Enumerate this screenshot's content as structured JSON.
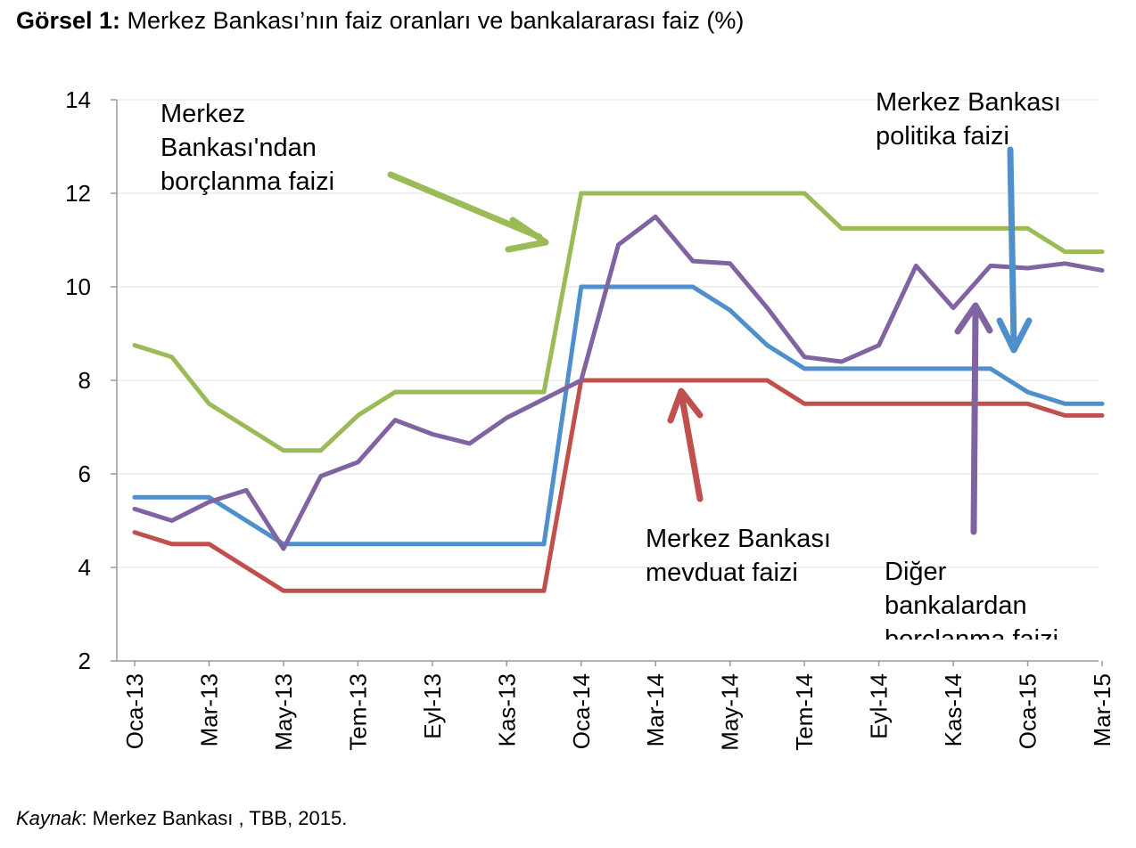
{
  "title": {
    "prefix": "Görsel 1:",
    "text": " Merkez Bankası’nın faiz oranları ve bankalararası faiz (%)"
  },
  "source": {
    "prefix": "Kaynak",
    "text": ": Merkez Bankası , TBB, 2015."
  },
  "chart_data": {
    "type": "line",
    "ylim": [
      2,
      14
    ],
    "yticks": [
      2,
      4,
      6,
      8,
      10,
      12,
      14
    ],
    "x_tick_labels": [
      "Oca-13",
      "Mar-13",
      "May-13",
      "Tem-13",
      "Eyl-13",
      "Kas-13",
      "Oca-14",
      "Mar-14",
      "May-14",
      "Tem-14",
      "Eyl-14",
      "Kas-14",
      "Oca-15",
      "Mar-15"
    ],
    "x": [
      "Oca-13",
      "Şub-13",
      "Mar-13",
      "Nis-13",
      "May-13",
      "Haz-13",
      "Tem-13",
      "Ağu-13",
      "Eyl-13",
      "Eki-13",
      "Kas-13",
      "Ara-13",
      "Oca-14",
      "Şub-14",
      "Mar-14",
      "Nis-14",
      "May-14",
      "Haz-14",
      "Tem-14",
      "Ağu-14",
      "Eyl-14",
      "Eki-14",
      "Kas-14",
      "Ara-14",
      "Oca-15",
      "Şub-15",
      "Mar-15"
    ],
    "series": [
      {
        "key": "borclanma",
        "color": "#9bbb59",
        "values": [
          8.75,
          8.5,
          7.5,
          7.0,
          6.5,
          6.5,
          7.25,
          7.75,
          7.75,
          7.75,
          7.75,
          7.75,
          12.0,
          12.0,
          12.0,
          12.0,
          12.0,
          12.0,
          12.0,
          11.25,
          11.25,
          11.25,
          11.25,
          11.25,
          11.25,
          10.75,
          10.75
        ]
      },
      {
        "key": "politika",
        "color": "#4f8fcc",
        "values": [
          5.5,
          5.5,
          5.5,
          5.0,
          4.5,
          4.5,
          4.5,
          4.5,
          4.5,
          4.5,
          4.5,
          4.5,
          10.0,
          10.0,
          10.0,
          10.0,
          9.5,
          8.75,
          8.25,
          8.25,
          8.25,
          8.25,
          8.25,
          8.25,
          7.75,
          7.5,
          7.5
        ]
      },
      {
        "key": "mevduat",
        "color": "#c0504d",
        "values": [
          4.75,
          4.5,
          4.5,
          4.0,
          3.5,
          3.5,
          3.5,
          3.5,
          3.5,
          3.5,
          3.5,
          3.5,
          8.0,
          8.0,
          8.0,
          8.0,
          8.0,
          8.0,
          7.5,
          7.5,
          7.5,
          7.5,
          7.5,
          7.5,
          7.5,
          7.25,
          7.25
        ]
      },
      {
        "key": "diger",
        "color": "#8064a2",
        "values": [
          5.25,
          5.0,
          5.4,
          5.65,
          4.4,
          5.95,
          6.25,
          7.15,
          6.85,
          6.65,
          7.2,
          7.6,
          8.0,
          10.9,
          11.5,
          10.55,
          10.5,
          9.55,
          8.5,
          8.4,
          8.75,
          10.45,
          9.55,
          10.45,
          10.4,
          10.5,
          10.35
        ]
      }
    ],
    "annotations": [
      {
        "key": "borclanma",
        "lines": [
          "Merkez",
          "Bankası'ndan",
          "borçlanma faizi"
        ]
      },
      {
        "key": "politika",
        "lines": [
          "Merkez Bankası",
          "politika faizi"
        ]
      },
      {
        "key": "mevduat",
        "lines": [
          "Merkez Bankası",
          "mevduat faizi"
        ]
      },
      {
        "key": "diger",
        "lines": [
          "Diğer",
          "bankalardan",
          "borçlanma faizi"
        ]
      }
    ]
  }
}
